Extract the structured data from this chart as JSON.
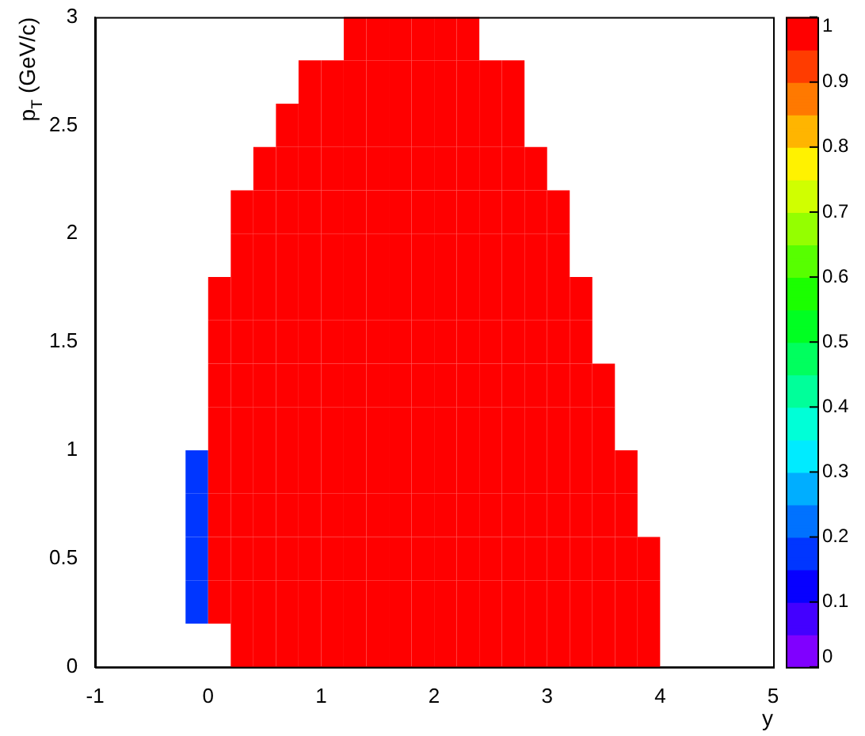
{
  "chart_data": {
    "type": "heatmap",
    "xlabel": "y",
    "ylabel": "p$_{T}$ (GeV/c)",
    "x": [
      -0.9,
      -0.7,
      -0.5,
      -0.3,
      -0.1,
      0.1,
      0.3,
      0.5,
      0.7,
      0.9,
      1.1,
      1.3,
      1.5,
      1.7,
      1.9,
      2.1,
      2.3,
      2.5,
      2.7,
      2.9,
      3.1,
      3.3,
      3.5,
      3.7,
      3.9,
      4.1,
      4.3,
      4.5,
      4.7,
      4.9
    ],
    "y": [
      2.9,
      2.7,
      2.5,
      2.3,
      2.1,
      1.9,
      1.7,
      1.5,
      1.3,
      1.1,
      0.9,
      0.7,
      0.5,
      0.3,
      0.1
    ],
    "xlim": [
      -1,
      5
    ],
    "xticks": [
      -1,
      0,
      1,
      2,
      3,
      4,
      5
    ],
    "ylim": [
      0,
      3
    ],
    "yticks": [
      0,
      0.5,
      1,
      1.5,
      2,
      2.5,
      3
    ],
    "clim": [
      0,
      1
    ],
    "cticks": [
      0,
      0.1,
      0.2,
      0.3,
      0.4,
      0.5,
      0.6,
      0.7,
      0.8,
      0.9,
      1
    ],
    "grid": false,
    "cells": [
      [
        null,
        null,
        null,
        null,
        null,
        null,
        null,
        null,
        null,
        null,
        null,
        1,
        1,
        1,
        1,
        1,
        1,
        null,
        null,
        null,
        null,
        null,
        null,
        null,
        null,
        null,
        null,
        null,
        null,
        null
      ],
      [
        null,
        null,
        null,
        null,
        null,
        null,
        null,
        null,
        null,
        1,
        1,
        1,
        1,
        1,
        1,
        1,
        1,
        1,
        1,
        null,
        null,
        null,
        null,
        null,
        null,
        null,
        null,
        null,
        null,
        null
      ],
      [
        null,
        null,
        null,
        null,
        null,
        null,
        null,
        null,
        1,
        1,
        1,
        1,
        1,
        1,
        1,
        1,
        1,
        1,
        1,
        null,
        null,
        null,
        null,
        null,
        null,
        null,
        null,
        null,
        null,
        null
      ],
      [
        null,
        null,
        null,
        null,
        null,
        null,
        null,
        1,
        1,
        1,
        1,
        1,
        1,
        1,
        1,
        1,
        1,
        1,
        1,
        1,
        null,
        null,
        null,
        null,
        null,
        null,
        null,
        null,
        null,
        null
      ],
      [
        null,
        null,
        null,
        null,
        null,
        null,
        1,
        1,
        1,
        1,
        1,
        1,
        1,
        1,
        1,
        1,
        1,
        1,
        1,
        1,
        1,
        null,
        null,
        null,
        null,
        null,
        null,
        null,
        null,
        null
      ],
      [
        null,
        null,
        null,
        null,
        null,
        null,
        1,
        1,
        1,
        1,
        1,
        1,
        1,
        1,
        1,
        1,
        1,
        1,
        1,
        1,
        1,
        null,
        null,
        null,
        null,
        null,
        null,
        null,
        null,
        null
      ],
      [
        null,
        null,
        null,
        null,
        null,
        1,
        1,
        1,
        1,
        1,
        1,
        1,
        1,
        1,
        1,
        1,
        1,
        1,
        1,
        1,
        1,
        1,
        null,
        null,
        null,
        null,
        null,
        null,
        null,
        null
      ],
      [
        null,
        null,
        null,
        null,
        null,
        1,
        1,
        1,
        1,
        1,
        1,
        1,
        1,
        1,
        1,
        1,
        1,
        1,
        1,
        1,
        1,
        1,
        null,
        null,
        null,
        null,
        null,
        null,
        null,
        null
      ],
      [
        null,
        null,
        null,
        null,
        null,
        1,
        1,
        1,
        1,
        1,
        1,
        1,
        1,
        1,
        1,
        1,
        1,
        1,
        1,
        1,
        1,
        1,
        1,
        null,
        null,
        null,
        null,
        null,
        null,
        null
      ],
      [
        null,
        null,
        null,
        null,
        null,
        1,
        1,
        1,
        1,
        1,
        1,
        1,
        1,
        1,
        1,
        1,
        1,
        1,
        1,
        1,
        1,
        1,
        1,
        null,
        null,
        null,
        null,
        null,
        null,
        null
      ],
      [
        null,
        null,
        null,
        null,
        0.15,
        1,
        1,
        1,
        1,
        1,
        1,
        1,
        1,
        1,
        1,
        1,
        1,
        1,
        1,
        1,
        1,
        1,
        1,
        1,
        null,
        null,
        null,
        null,
        null,
        null
      ],
      [
        null,
        null,
        null,
        null,
        0.15,
        1,
        1,
        1,
        1,
        1,
        1,
        1,
        1,
        1,
        1,
        1,
        1,
        1,
        1,
        1,
        1,
        1,
        1,
        1,
        null,
        null,
        null,
        null,
        null,
        null
      ],
      [
        null,
        null,
        null,
        null,
        0.15,
        1,
        1,
        1,
        1,
        1,
        1,
        1,
        1,
        1,
        1,
        1,
        1,
        1,
        1,
        1,
        1,
        1,
        1,
        1,
        1,
        null,
        null,
        null,
        null,
        null
      ],
      [
        null,
        null,
        null,
        null,
        0.15,
        1,
        1,
        1,
        1,
        1,
        1,
        1,
        1,
        1,
        1,
        1,
        1,
        1,
        1,
        1,
        1,
        1,
        1,
        1,
        1,
        null,
        null,
        null,
        null,
        null
      ],
      [
        null,
        null,
        null,
        null,
        null,
        null,
        1,
        1,
        1,
        1,
        1,
        1,
        1,
        1,
        1,
        1,
        1,
        1,
        1,
        1,
        1,
        1,
        1,
        1,
        1,
        null,
        null,
        null,
        null,
        null
      ]
    ]
  }
}
